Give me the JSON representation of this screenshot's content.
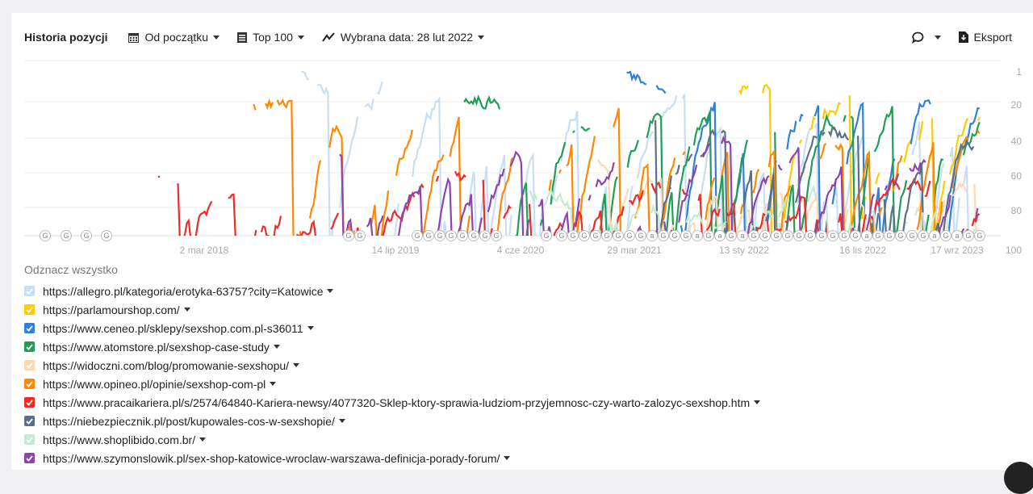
{
  "toolbar": {
    "title": "Historia pozycji",
    "range_label": "Od początku",
    "top_label": "Top 100",
    "date_label": "Wybrana data: 28 lut 2022",
    "export_label": "Eksport"
  },
  "legend": {
    "toggle_all": "Odznacz wszystko",
    "items": [
      {
        "url": "https://allegro.pl/kategoria/erotyka-63757?city=Katowice",
        "color": "#c6dff5"
      },
      {
        "url": "https://parlamourshop.com/",
        "color": "#ffcc00"
      },
      {
        "url": "https://www.ceneo.pl/sklepy/sexshop.com.pl-s36011",
        "color": "#2f80d9"
      },
      {
        "url": "https://www.atomstore.pl/sexshop-case-study",
        "color": "#1f9e55"
      },
      {
        "url": "https://widoczni.com/blog/promowanie-sexshopu/",
        "color": "#fcd9b0"
      },
      {
        "url": "https://www.opineo.pl/opinie/sexshop-com-pl",
        "color": "#ff8800"
      },
      {
        "url": "https://www.pracaikariera.pl/s/2574/64840-Kariera-newsy/4077320-Sklep-ktory-sprawia-ludziom-przyjemnosc-czy-warto-zalozyc-sexshop.htm",
        "color": "#ee2a2a"
      },
      {
        "url": "https://niebezpiecznik.pl/post/kupowales-cos-w-sexshopie/",
        "color": "#5a6f88"
      },
      {
        "url": "https://www.shoplibido.com.br/",
        "color": "#c4ead3"
      },
      {
        "url": "https://www.szymonslowik.pl/sex-shop-katowice-wroclaw-warszawa-definicja-porady-forum/",
        "color": "#8e44ad"
      }
    ]
  },
  "chart_data": {
    "type": "line",
    "title": "Historia pozycji",
    "ylim": [
      1,
      100
    ],
    "y_inverted": true,
    "y_ticks": [
      "1",
      "20",
      "40",
      "60",
      "80",
      "100"
    ],
    "x_ticks": [
      "2 mar 2018",
      "14 lip 2019",
      "4 cze 2020",
      "29 mar 2021",
      "13 sty 2022",
      "16 lis 2022",
      "17 wrz 2023"
    ],
    "grid": true,
    "series": [
      {
        "name": "allegro.pl",
        "active": [
          0.28,
          1.0
        ],
        "level": 3
      },
      {
        "name": "parlamourshop.com",
        "active": [
          0.74,
          1.0
        ],
        "level": 8
      },
      {
        "name": "ceneo.pl",
        "active": [
          0.63,
          1.0
        ],
        "level": 5
      },
      {
        "name": "atomstore.pl",
        "active": [
          0.46,
          1.0
        ],
        "level": 15
      },
      {
        "name": "widoczni.com",
        "active": [
          0.6,
          1.0
        ],
        "level": 50
      },
      {
        "name": "opineo.pl",
        "active": [
          0.24,
          1.0
        ],
        "level": 20
      },
      {
        "name": "pracaikariera.pl",
        "active": [
          0.14,
          1.0
        ],
        "level": 60
      },
      {
        "name": "niebezpiecznik.pl",
        "active": [
          0.66,
          1.0
        ],
        "level": 25
      },
      {
        "name": "shoplibido.com.br",
        "active": [
          0.52,
          1.0
        ],
        "level": 70
      },
      {
        "name": "szymonslowik.pl",
        "active": [
          0.33,
          1.0
        ],
        "level": 45
      }
    ],
    "annotations": [
      "G",
      "G",
      "G",
      "G",
      "G",
      "G",
      "G",
      "G",
      "G",
      "G",
      "G",
      "G",
      "G",
      "G",
      "G",
      "G",
      "G",
      "G",
      "G",
      "G",
      "G",
      "G",
      "G",
      "a",
      "G",
      "G",
      "G",
      "a",
      "G",
      "a",
      "G",
      "a",
      "G",
      "G",
      "G",
      "G",
      "G",
      "G",
      "G",
      "G",
      "G",
      "G",
      "a",
      "G",
      "G",
      "G",
      "G",
      "G",
      "a",
      "G",
      "a",
      "G",
      "G"
    ]
  }
}
